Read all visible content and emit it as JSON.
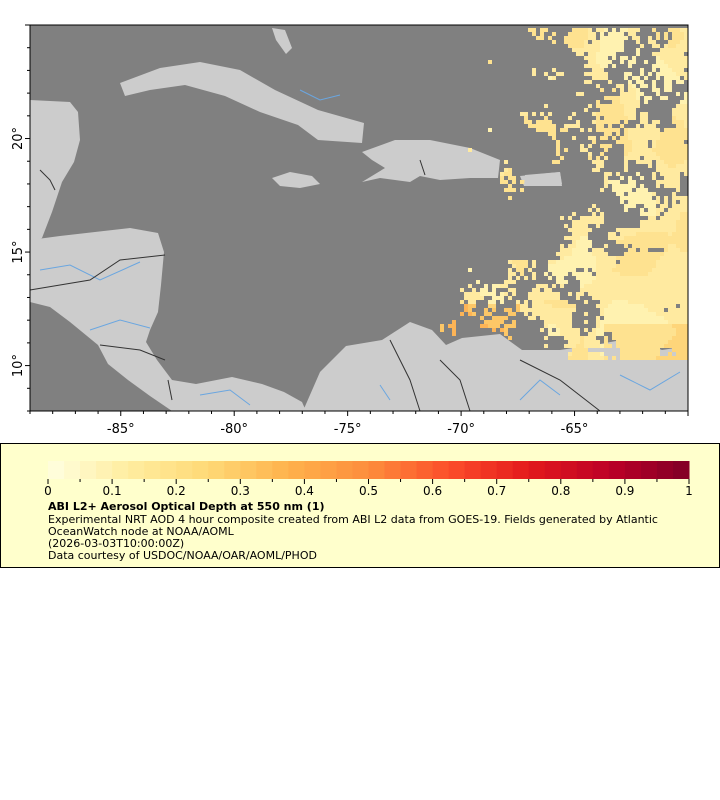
{
  "map": {
    "lon_range": [
      -89,
      -60
    ],
    "lat_range": [
      8,
      25
    ],
    "lon_ticks": [
      {
        "value": -85,
        "label": "-85°"
      },
      {
        "value": -80,
        "label": "-80°"
      },
      {
        "value": -75,
        "label": "-75°"
      },
      {
        "value": -70,
        "label": "-70°"
      },
      {
        "value": -65,
        "label": "-65°"
      }
    ],
    "lat_ticks": [
      {
        "value": 20,
        "label": "20°"
      },
      {
        "value": 15,
        "label": "15°"
      },
      {
        "value": 10,
        "label": "10°"
      }
    ],
    "colors": {
      "ocean": "#808080",
      "land": "#cccccc",
      "rivers": "#6aa6e0",
      "borders": "#888888",
      "national_borders": "#333333"
    }
  },
  "legend": {
    "colorbar": {
      "min": 0,
      "max": 1,
      "tick_labels": [
        "0",
        "0.1",
        "0.2",
        "0.3",
        "0.4",
        "0.5",
        "0.6",
        "0.7",
        "0.8",
        "0.9",
        "1"
      ],
      "palette": [
        "#ffffe0",
        "#ffeda0",
        "#fed976",
        "#feb24c",
        "#fd8d3c",
        "#fc4e2a",
        "#e31a1c",
        "#bd0026",
        "#800026"
      ]
    },
    "title": "ABI L2+ Aerosol Optical Depth at 550 nm (1)",
    "line1": "Experimental NRT AOD 4 hour composite created from ABI L2 data from GOES-19. Fields generated by Atlantic",
    "line2": "OceanWatch node at NOAA/AOML",
    "line3": "(2026-03-03T10:00:00Z)",
    "line4": "Data courtesy of USDOC/NOAA/OAR/AOML/PHOD"
  }
}
